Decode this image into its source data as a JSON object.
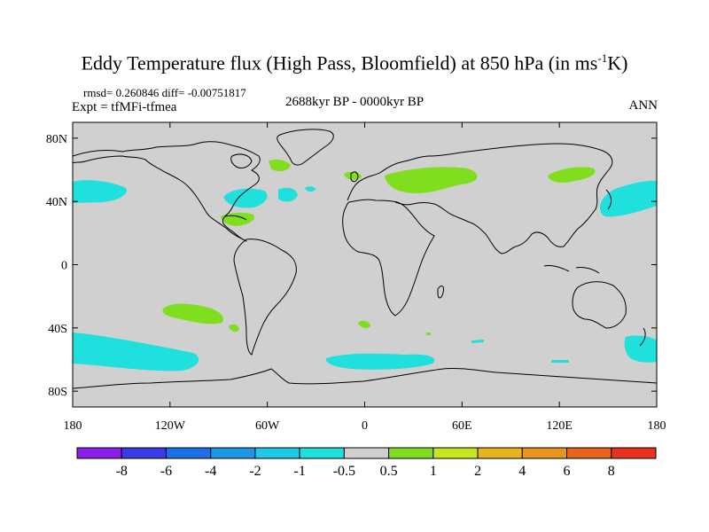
{
  "title": {
    "main": "Eddy Temperature flux (High Pass, Bloomfield) at 850 hPa (in ms",
    "unit_sup": "-1",
    "unit_tail": "K)"
  },
  "stats": "rmsd= 0.260846 diff= -0.00751817",
  "experiment": "Expt = tfMFi-tfmea",
  "period": "2688kyr BP - 0000kyr BP",
  "season": "ANN",
  "map": {
    "lon_range": [
      -180,
      180
    ],
    "lat_range": [
      -90,
      90
    ],
    "land_fill": "#d0d0d0",
    "lat_ticks": [
      {
        "value": 80,
        "label": "80N"
      },
      {
        "value": 40,
        "label": "40N"
      },
      {
        "value": 0,
        "label": "0"
      },
      {
        "value": -40,
        "label": "40S"
      },
      {
        "value": -80,
        "label": "80S"
      }
    ],
    "lon_ticks": [
      {
        "value": -180,
        "label": "180"
      },
      {
        "value": -120,
        "label": "120W"
      },
      {
        "value": -60,
        "label": "60W"
      },
      {
        "value": 0,
        "label": "0"
      },
      {
        "value": 60,
        "label": "60E"
      },
      {
        "value": 120,
        "label": "120E"
      },
      {
        "value": 180,
        "label": "180"
      }
    ],
    "positive_color": "#7fdf1f",
    "negative_color": "#1fe0dc"
  },
  "colorbar": {
    "colors": [
      "#8a1ee6",
      "#3a3ae6",
      "#1e6ee6",
      "#1e96e6",
      "#1ec8e6",
      "#1fe0dc",
      "#d0d0d0",
      "#7fdf1f",
      "#c8e61e",
      "#e6b41e",
      "#e6961e",
      "#e6641e",
      "#e6321e"
    ],
    "labels": [
      "-8",
      "-6",
      "-4",
      "-2",
      "-1",
      "-0.5",
      "0.5",
      "1",
      "2",
      "4",
      "6",
      "8"
    ]
  }
}
